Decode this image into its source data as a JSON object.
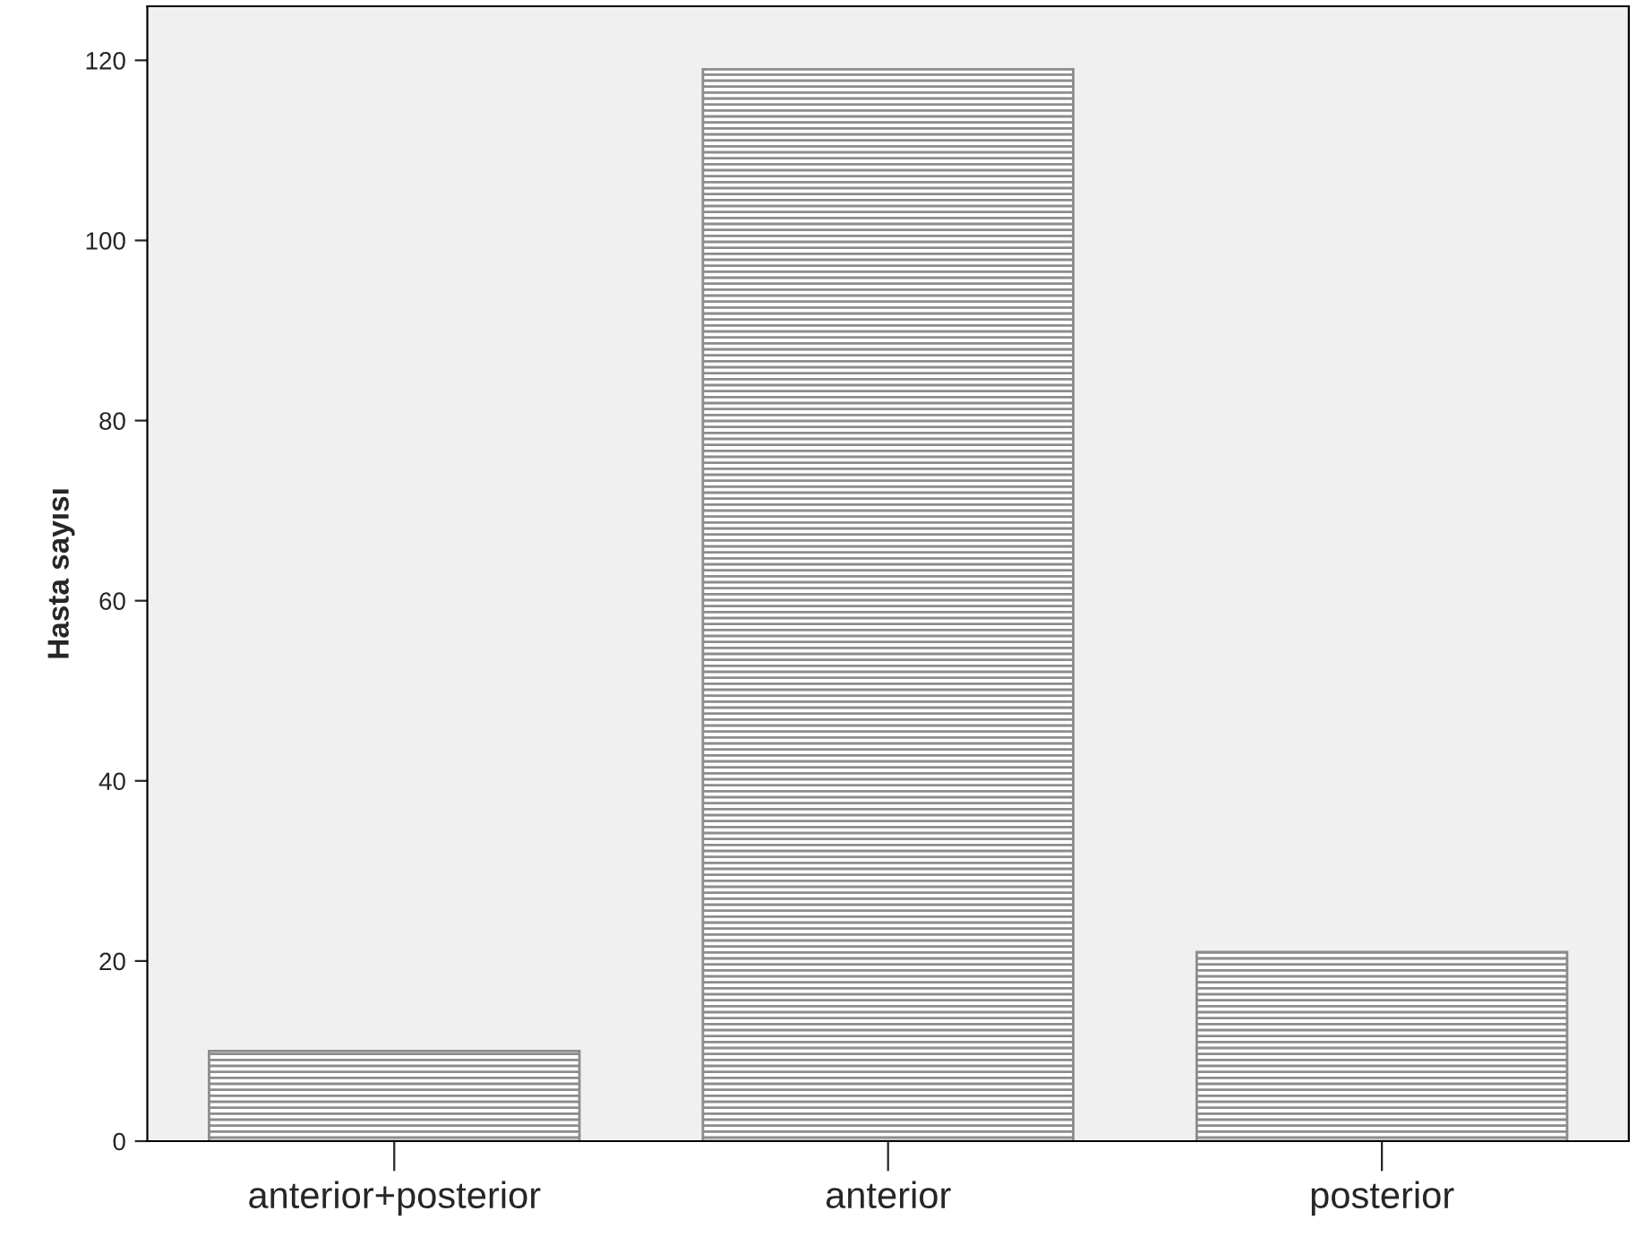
{
  "chart_data": {
    "type": "bar",
    "ylabel": "Hasta sayısı",
    "categories": [
      "anterior+posterior",
      "anterior",
      "posterior"
    ],
    "values": [
      10,
      119,
      21
    ],
    "color": "#8c8c8c",
    "ylim": [
      0,
      126
    ],
    "yticks": [
      0,
      20,
      40,
      60,
      80,
      100,
      120
    ],
    "grid": false
  }
}
